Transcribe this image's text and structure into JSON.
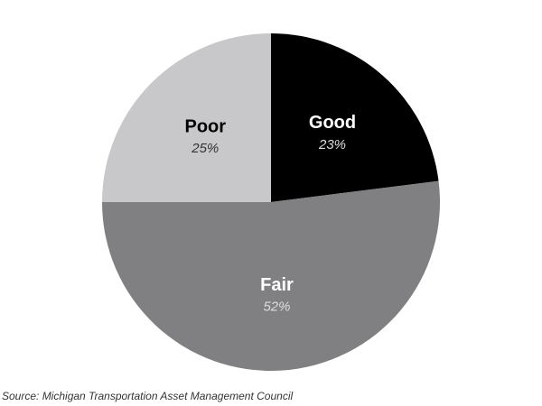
{
  "chart_data": {
    "type": "pie",
    "categories": [
      "Good",
      "Fair",
      "Poor"
    ],
    "values": [
      23,
      52,
      25
    ],
    "value_labels": [
      "23%",
      "52%",
      "25%"
    ],
    "colors": [
      "#000000",
      "#808083",
      "#c8c8ca"
    ],
    "source": "Source: Michigan Transportation Asset Management Council"
  }
}
